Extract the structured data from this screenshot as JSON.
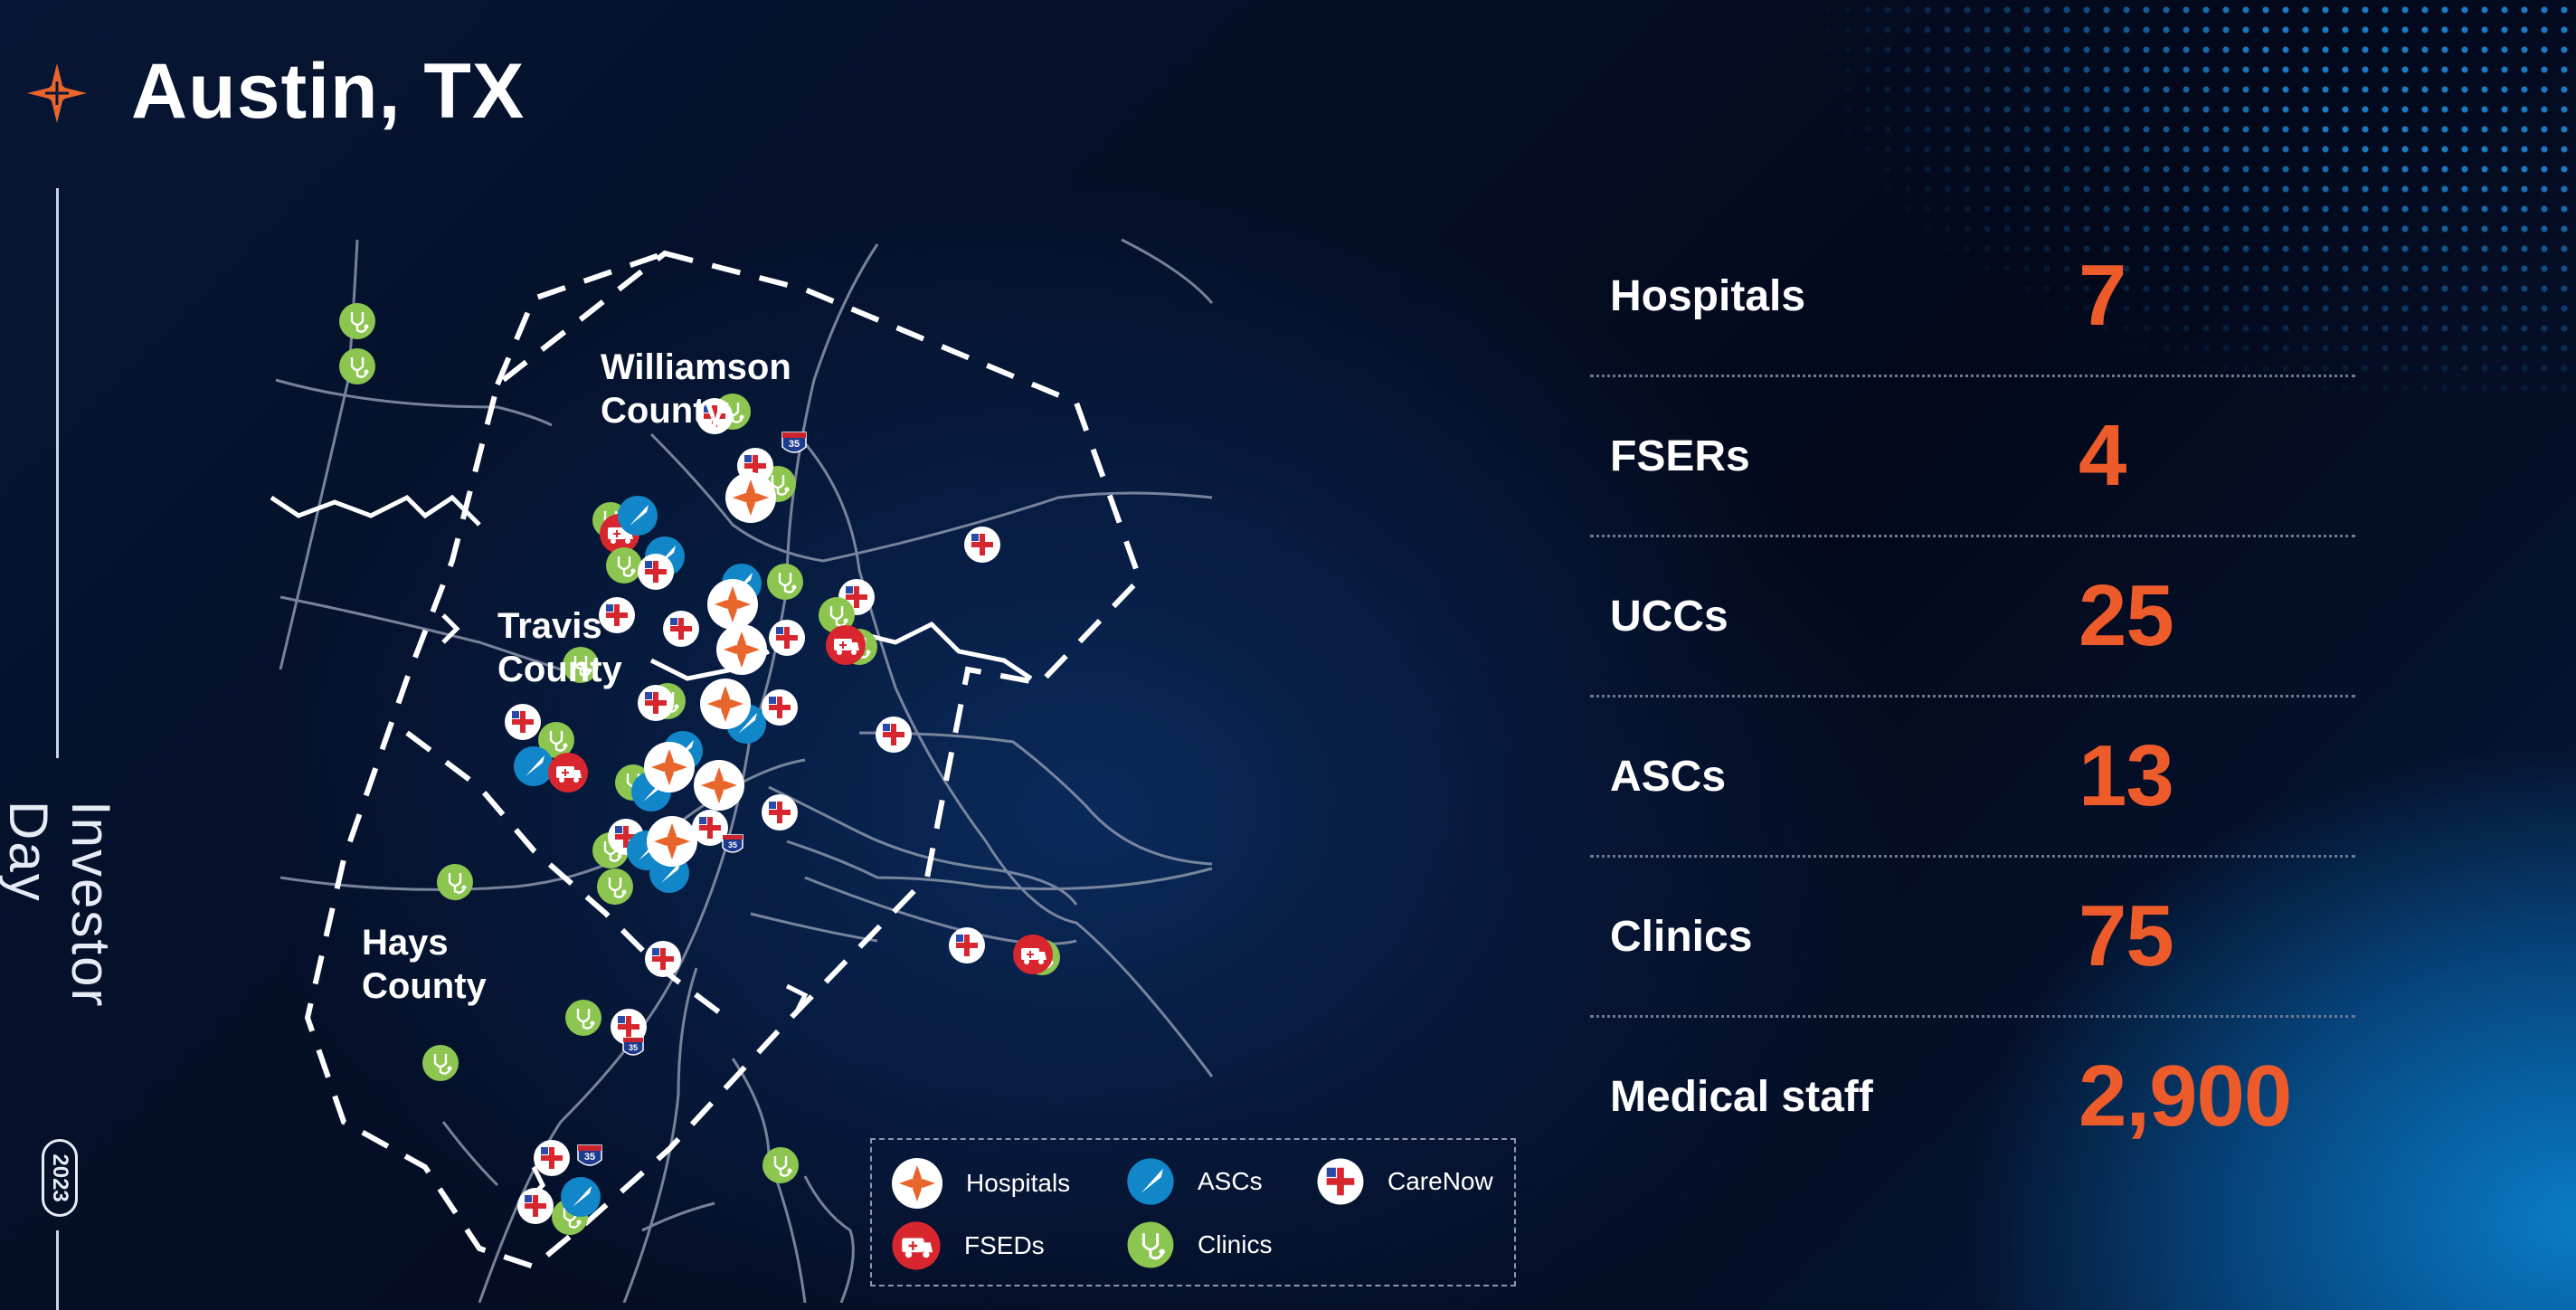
{
  "header": {
    "title": "Austin, TX",
    "logo_icon": "orange-cross-logo-icon"
  },
  "sidebar": {
    "year": "2023",
    "event": "Investor Day"
  },
  "map": {
    "counties": [
      {
        "name_line1": "Williamson",
        "name_line2": "County"
      },
      {
        "name_line1": "Travis",
        "name_line2": "County"
      },
      {
        "name_line1": "Hays",
        "name_line2": "County"
      }
    ],
    "highway_shield": "35",
    "colors": {
      "hospital": "#e8652b",
      "fsed": "#d8262f",
      "asc": "#1186c9",
      "clinic": "#8cc54f",
      "carenow": "#d8262f"
    }
  },
  "legend": {
    "items": [
      {
        "key": "hospital",
        "label": "Hospitals",
        "icon": "hospital-icon"
      },
      {
        "key": "asc",
        "label": "ASCs",
        "icon": "asc-scalpel-icon"
      },
      {
        "key": "carenow",
        "label": "CareNow",
        "icon": "carenow-cross-icon"
      },
      {
        "key": "fsed",
        "label": "FSEDs",
        "icon": "ambulance-icon"
      },
      {
        "key": "clinic",
        "label": "Clinics",
        "icon": "stethoscope-icon"
      }
    ]
  },
  "stats": [
    {
      "label": "Hospitals",
      "value": "7"
    },
    {
      "label": "FSERs",
      "value": "4"
    },
    {
      "label": "UCCs",
      "value": "25"
    },
    {
      "label": "ASCs",
      "value": "13"
    },
    {
      "label": "Clinics",
      "value": "75"
    },
    {
      "label": "Medical staff",
      "value": "2,900"
    }
  ],
  "accent_color": "#ee5b2a"
}
